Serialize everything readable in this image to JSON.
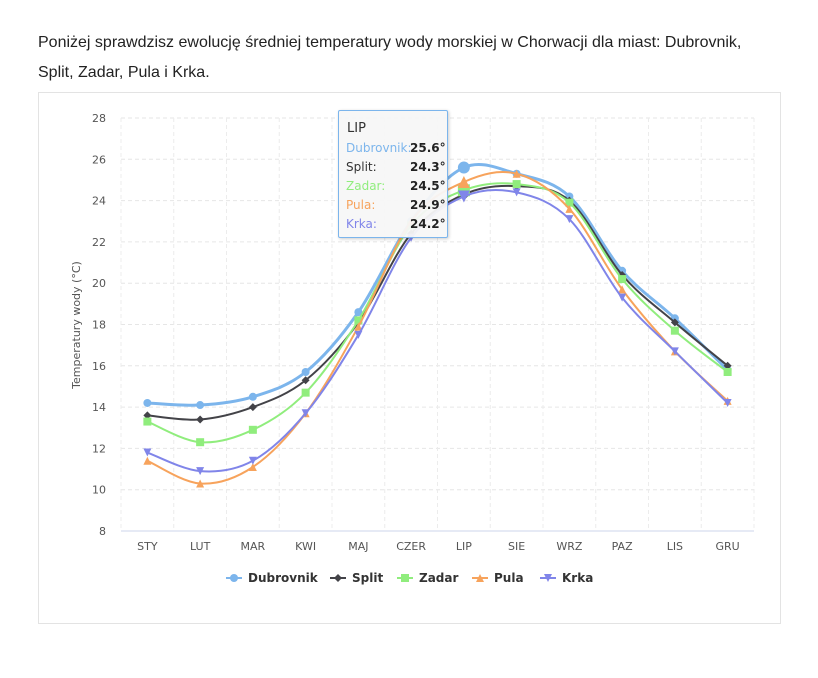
{
  "intro_text": "Poniżej sprawdzisz ewolucję średniej temperatury wody morskiej w Chorwacji dla miast: Dubrovnik, Split, Zadar, Pula i Krka.",
  "chart_data": {
    "type": "line",
    "ylabel": "Temperatury wody (°C)",
    "ylim": [
      8,
      28
    ],
    "yticks": [
      8,
      10,
      12,
      14,
      16,
      18,
      20,
      22,
      24,
      26,
      28
    ],
    "grid": true,
    "legend": "bottom",
    "categories": [
      "STY",
      "LUT",
      "MAR",
      "KWI",
      "MAJ",
      "CZER",
      "LIP",
      "SIE",
      "WRZ",
      "PAZ",
      "LIS",
      "GRU"
    ],
    "series": [
      {
        "name": "Dubrovnik",
        "color": "#7cb5ec",
        "marker": "circle",
        "values": [
          14.2,
          14.1,
          14.5,
          15.7,
          18.6,
          23.0,
          25.6,
          25.3,
          24.2,
          20.6,
          18.3,
          15.8
        ]
      },
      {
        "name": "Split",
        "color": "#434348",
        "marker": "diamond",
        "values": [
          13.6,
          13.4,
          14.0,
          15.3,
          18.1,
          22.4,
          24.3,
          24.7,
          24.0,
          20.4,
          18.1,
          16.0
        ]
      },
      {
        "name": "Zadar",
        "color": "#90ed7d",
        "marker": "square",
        "values": [
          13.3,
          12.3,
          12.9,
          14.7,
          18.2,
          22.8,
          24.5,
          24.8,
          23.9,
          20.2,
          17.7,
          15.7
        ]
      },
      {
        "name": "Pula",
        "color": "#f7a35c",
        "marker": "triangle",
        "values": [
          11.4,
          10.3,
          11.1,
          13.7,
          17.9,
          23.0,
          24.9,
          25.3,
          23.6,
          19.7,
          16.7,
          14.3
        ]
      },
      {
        "name": "Krka",
        "color": "#8085e9",
        "marker": "triangle-down",
        "values": [
          11.8,
          10.9,
          11.4,
          13.7,
          17.5,
          22.2,
          24.2,
          24.4,
          23.1,
          19.3,
          16.7,
          14.2
        ]
      }
    ],
    "tooltip": {
      "category": "LIP",
      "rows": [
        {
          "name": "Dubrovnik:",
          "value": "25.6°"
        },
        {
          "name": "Split:",
          "value": "24.3°"
        },
        {
          "name": "Zadar:",
          "value": "24.5°"
        },
        {
          "name": "Pula:",
          "value": "24.9°"
        },
        {
          "name": "Krka:",
          "value": "24.2°"
        }
      ]
    }
  }
}
